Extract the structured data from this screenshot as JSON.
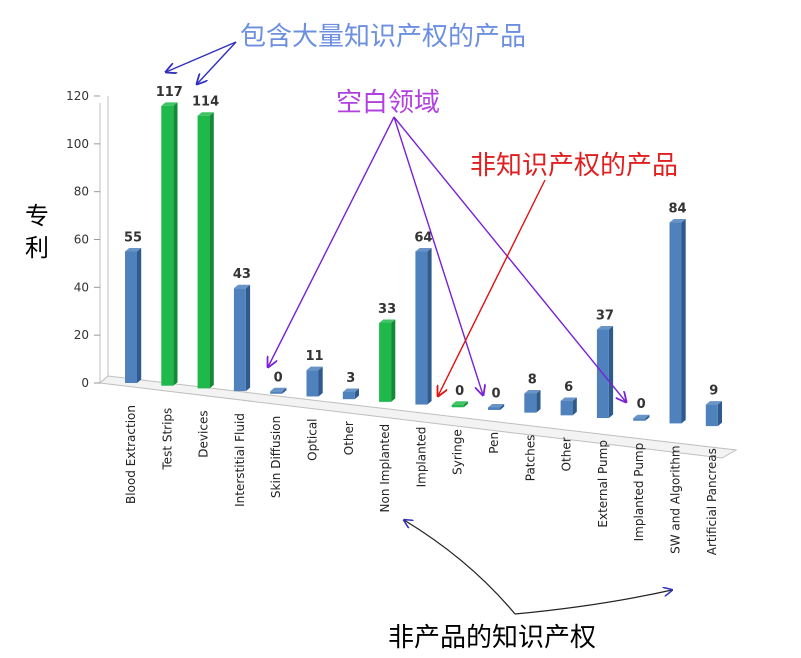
{
  "colors": {
    "blue": "#4F81BD",
    "blue_dark": "#2E5A8C",
    "green": "#1FB84A",
    "green_dark": "#138A35",
    "ip_annotation": "#6C8FE0",
    "blank_annotation": "#B040E0",
    "nonip_annotation": "#E02020",
    "nonproduct_annotation": "#000000",
    "arrow_purple": "#7A20D8",
    "arrow_red": "#E01010",
    "arrow_blue": "#3030C0"
  },
  "annotations": {
    "ip_products": "包含大量知识产权的产品",
    "blank_field": "空白领域",
    "non_ip_products": "非知识产权的产品",
    "non_product_ip": "非产品的知识产权"
  },
  "chart_data": {
    "type": "bar",
    "title": "",
    "xlabel": "",
    "ylabel": "专利",
    "ylim": [
      0,
      120
    ],
    "yticks": [
      0,
      20,
      40,
      60,
      80,
      100,
      120
    ],
    "grid": false,
    "legend": "none",
    "categories": [
      "Blood Extraction",
      "Test Strips",
      "Devices",
      "Interstitial Fluid",
      "Skin Diffusion",
      "Optical",
      "Other",
      "Non Implanted",
      "Implanted",
      "Syringe",
      "Pen",
      "Patches",
      "Other",
      "External Pump",
      "Implanted Pump",
      "SW and Algorithm",
      "Artificial Pancreas"
    ],
    "values": [
      55,
      117,
      114,
      43,
      0,
      11,
      3,
      33,
      64,
      0,
      0,
      8,
      6,
      37,
      0,
      84,
      9
    ],
    "bar_colors": [
      "blue",
      "green",
      "green",
      "blue",
      "blue",
      "blue",
      "blue",
      "green",
      "blue",
      "green",
      "blue",
      "blue",
      "blue",
      "blue",
      "blue",
      "blue",
      "blue"
    ]
  }
}
